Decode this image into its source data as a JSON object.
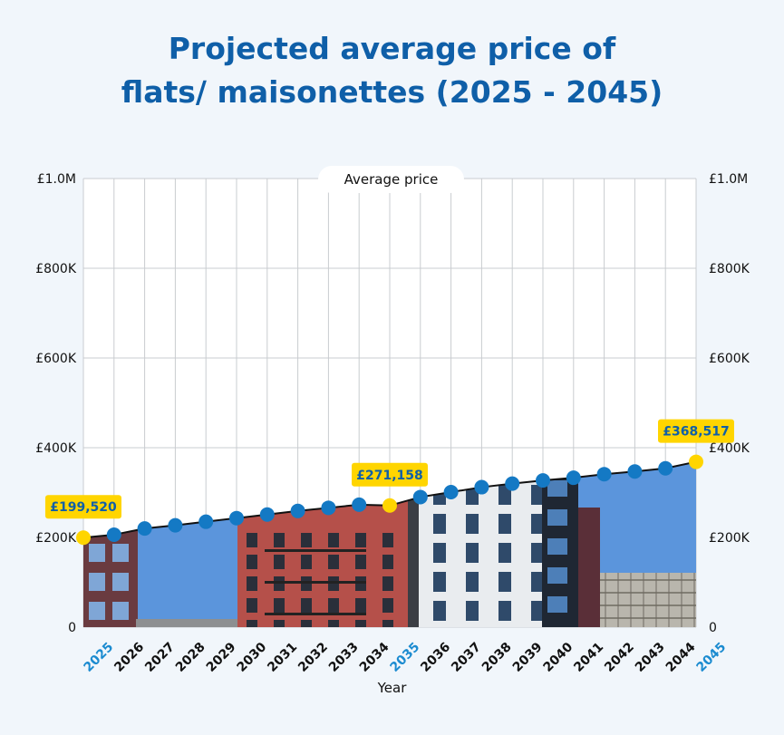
{
  "title_line1": "Projected average price of",
  "title_line2": "flats/ maisonettes (2025 - 2045)",
  "chart_data": {
    "type": "line",
    "title": "Projected average price of flats/ maisonettes (2025 - 2045)",
    "xlabel": "Year",
    "ylabel": "",
    "legend": "Average price",
    "legend_position": "top-center",
    "grid": true,
    "ylim": [
      0,
      1000000
    ],
    "y_ticks": [
      "0",
      "£200K",
      "£400K",
      "£600K",
      "£800K",
      "£1.0M"
    ],
    "categories": [
      "2025",
      "2026",
      "2027",
      "2028",
      "2029",
      "2030",
      "2031",
      "2032",
      "2033",
      "2034",
      "2035",
      "2036",
      "2037",
      "2038",
      "2039",
      "2040",
      "2041",
      "2042",
      "2043",
      "2044",
      "2045"
    ],
    "series": [
      {
        "name": "Average price",
        "values": [
          199520,
          206000,
          220000,
          227000,
          235000,
          243000,
          251000,
          259000,
          266000,
          273000,
          271158,
          290000,
          301000,
          312000,
          320000,
          327000,
          333000,
          341000,
          347000,
          354000,
          368517
        ]
      }
    ],
    "highlighted_years": [
      "2025",
      "2035",
      "2045"
    ],
    "annotations": [
      {
        "year": "2025",
        "label": "£199,520"
      },
      {
        "year": "2035",
        "label": "£271,158"
      },
      {
        "year": "2045",
        "label": "£368,517"
      }
    ]
  },
  "colors": {
    "title": "#0f5fa8",
    "marker": "#1479c4",
    "highlight_marker": "#ffd500",
    "highlight_year": "#1b8bd0",
    "label_text": "#0f5fa8",
    "label_bg": "#ffd500",
    "line": "#111111",
    "sky": "#5b95dc",
    "brick": "#b5504a",
    "cladding": "#e9ecef"
  },
  "image_description_icon": "apartment-buildings-photo"
}
